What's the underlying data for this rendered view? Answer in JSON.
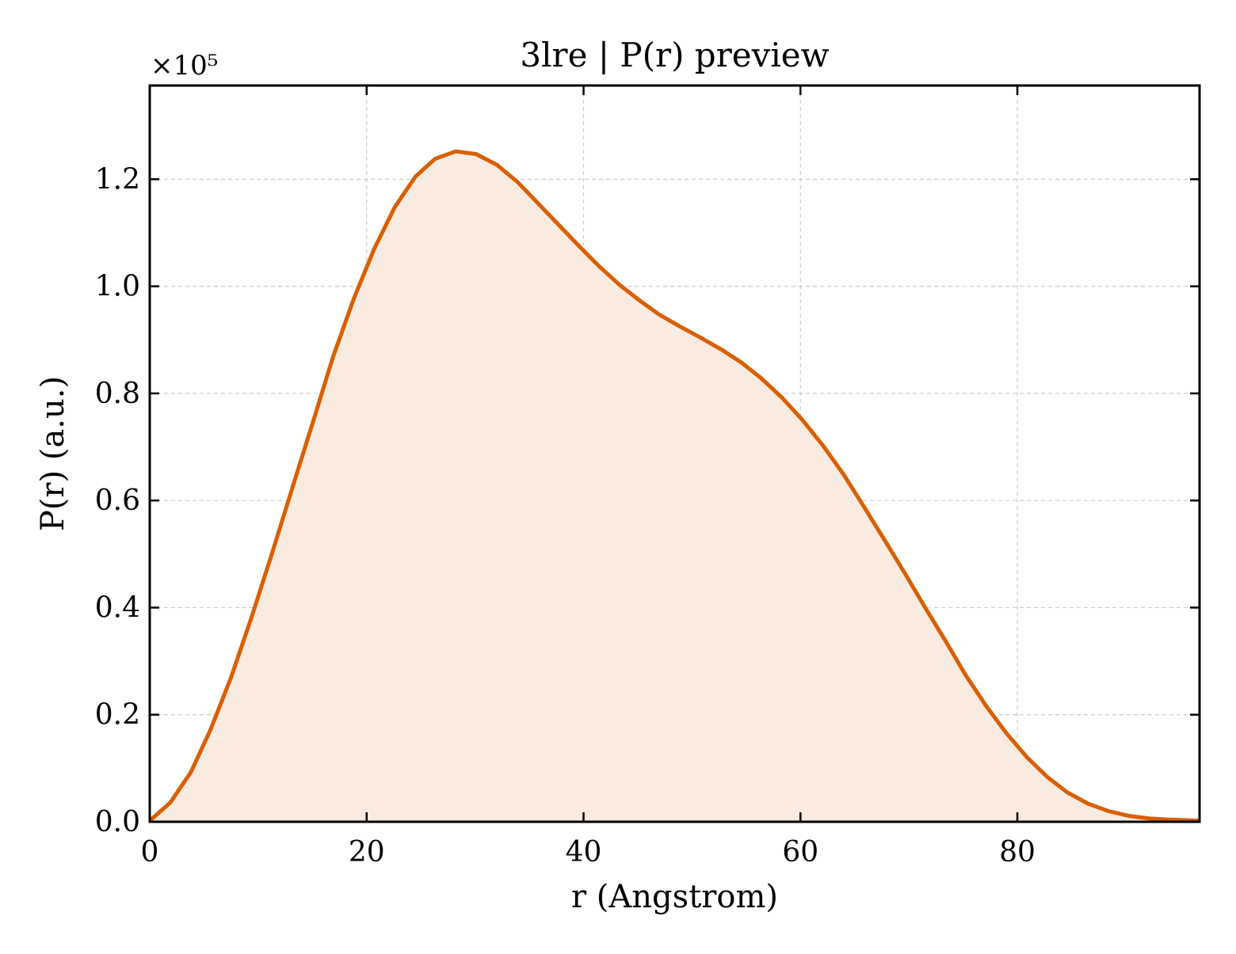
{
  "chart_data": {
    "type": "area",
    "title": "3lre | P(r) preview",
    "xlabel": "r (Angstrom)",
    "ylabel": "P(r) (a.u.)",
    "y_multiplier_label": "×10⁵",
    "xlim": [
      0,
      96.8
    ],
    "ylim": [
      0,
      1.375
    ],
    "xticks": [
      0,
      20,
      40,
      60,
      80
    ],
    "yticks": [
      0.0,
      0.2,
      0.4,
      0.6,
      0.8,
      1.0,
      1.2
    ],
    "xtick_labels": [
      "0",
      "20",
      "40",
      "60",
      "80"
    ],
    "ytick_labels": [
      "0.0",
      "0.2",
      "0.4",
      "0.6",
      "0.8",
      "1.0",
      "1.2"
    ],
    "grid": true,
    "legend": "none",
    "line_color": "#d95f02",
    "fill_color": "#f9ebe0",
    "series": [
      {
        "x": [
          0,
          1.9,
          3.8,
          5.6,
          7.5,
          9.4,
          11.3,
          13.2,
          15.1,
          16.9,
          18.8,
          20.7,
          22.6,
          24.5,
          26.3,
          28.2,
          30.1,
          32.0,
          33.9,
          35.7,
          37.6,
          39.5,
          41.4,
          43.3,
          45.2,
          47.0,
          48.9,
          50.8,
          52.7,
          54.6,
          56.4,
          58.3,
          60.2,
          62.1,
          64.0,
          65.8,
          67.7,
          69.6,
          71.5,
          73.4,
          75.2,
          77.1,
          79.0,
          80.9,
          82.8,
          84.6,
          86.5,
          88.4,
          90.3,
          92.2,
          94.0,
          96.8
        ],
        "values": [
          0.002,
          0.036,
          0.093,
          0.172,
          0.27,
          0.383,
          0.503,
          0.627,
          0.75,
          0.868,
          0.976,
          1.07,
          1.148,
          1.205,
          1.238,
          1.252,
          1.247,
          1.227,
          1.195,
          1.157,
          1.117,
          1.077,
          1.038,
          1.003,
          0.973,
          0.947,
          0.925,
          0.904,
          0.882,
          0.857,
          0.828,
          0.792,
          0.75,
          0.702,
          0.648,
          0.59,
          0.528,
          0.465,
          0.4,
          0.337,
          0.275,
          0.217,
          0.165,
          0.12,
          0.083,
          0.055,
          0.034,
          0.02,
          0.011,
          0.006,
          0.004,
          0.002
        ]
      }
    ]
  }
}
